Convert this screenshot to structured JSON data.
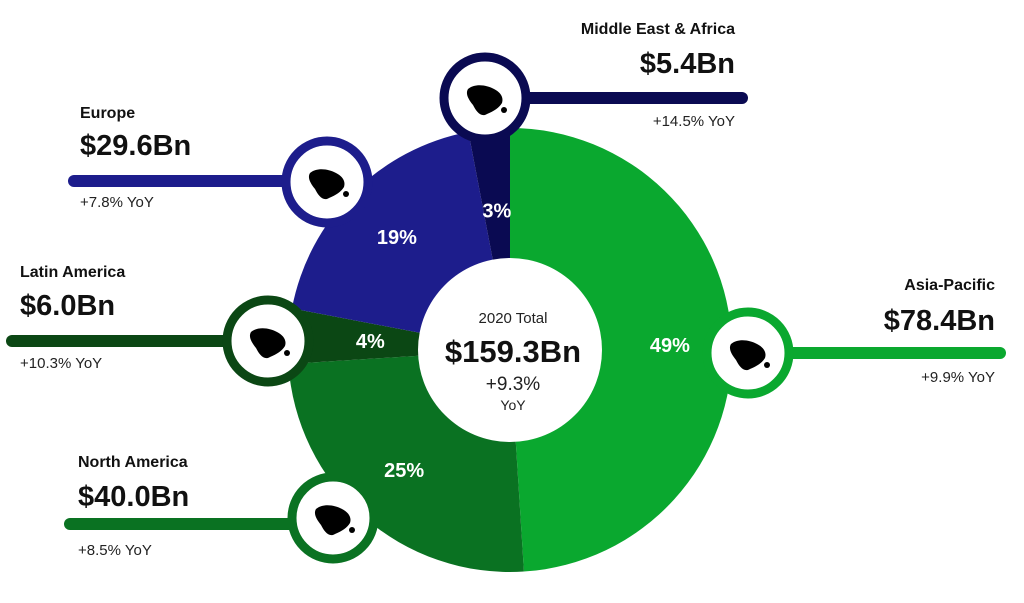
{
  "chart_data": {
    "type": "pie",
    "style": "donut",
    "center": {
      "title": "2020 Total",
      "total": "$159.3Bn",
      "growth": "+9.3%",
      "growth_unit": "YoY"
    },
    "slices": [
      {
        "region": "Asia-Pacific",
        "percent": 49,
        "percent_label": "49%",
        "value": 78.4,
        "value_label": "$78.4Bn",
        "yoy": "+9.9% YoY",
        "color": "#0aa82f",
        "icon": "asia-pacific-map-icon"
      },
      {
        "region": "North America",
        "percent": 25,
        "percent_label": "25%",
        "value": 40.0,
        "value_label": "$40.0Bn",
        "yoy": "+8.5% YoY",
        "color": "#0a7222",
        "icon": "north-america-map-icon"
      },
      {
        "region": "Latin America",
        "percent": 4,
        "percent_label": "4%",
        "value": 6.0,
        "value_label": "$6.0Bn",
        "yoy": "+10.3% YoY",
        "color": "#0b4714",
        "icon": "south-america-map-icon"
      },
      {
        "region": "Europe",
        "percent": 19,
        "percent_label": "19%",
        "value": 29.6,
        "value_label": "$29.6Bn",
        "yoy": "+7.8% YoY",
        "color": "#1d1d8c",
        "icon": "europe-map-icon"
      },
      {
        "region": "Middle East & Africa",
        "percent": 3,
        "percent_label": "3%",
        "value": 5.4,
        "value_label": "$5.4Bn",
        "yoy": "+14.5% YoY",
        "color": "#0a0a52",
        "icon": "africa-map-icon"
      }
    ]
  }
}
